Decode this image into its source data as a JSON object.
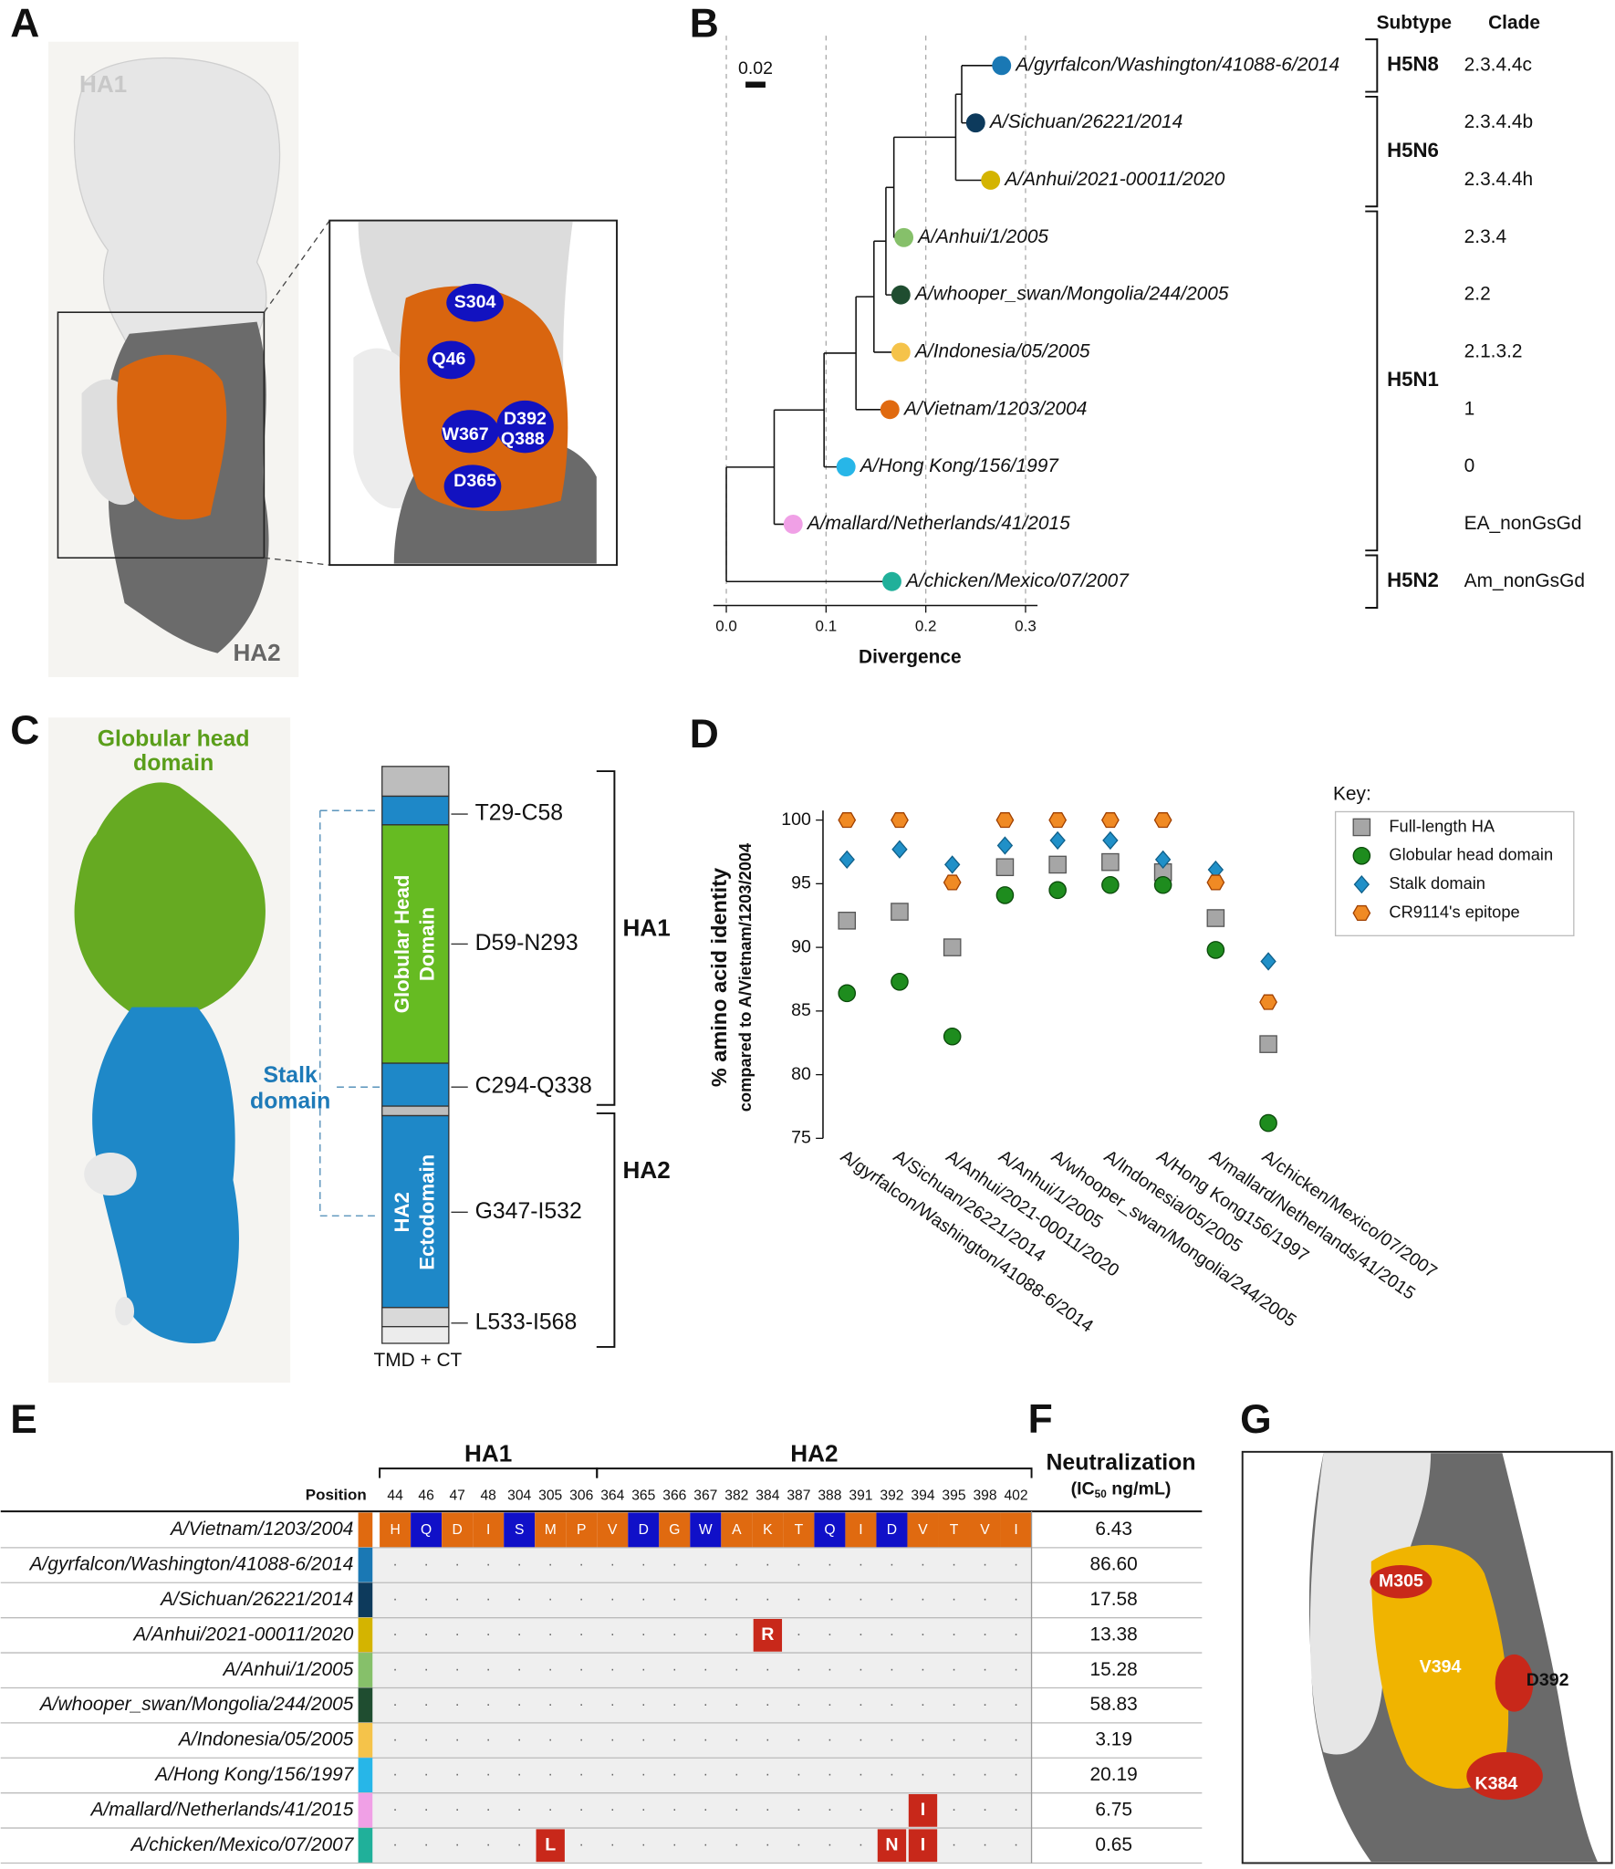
{
  "panel_labels": [
    "A",
    "B",
    "C",
    "D",
    "E",
    "F",
    "G"
  ],
  "panel_a": {
    "ha1": "HA1",
    "ha2": "HA2",
    "residues": [
      "S304",
      "Q46",
      "W367",
      "D392",
      "Q388",
      "D365"
    ]
  },
  "panel_b": {
    "headers": [
      "Subtype",
      "Clade"
    ],
    "scale_bar": 0.02,
    "x_label": "Divergence",
    "xlim": [
      -0.013,
      0.312
    ],
    "xticks": [
      {
        "value": 0,
        "label": "0.0"
      },
      0.1,
      0.2,
      0.3
    ],
    "grid": true,
    "tree": {
      "divergence": 0,
      "children": [
        {
          "divergence": 0.048,
          "children": [
            {
              "divergence": 0.098,
              "children": [
                {
                  "divergence": 0.13,
                  "children": [
                    {
                      "divergence": 0.148,
                      "children": [
                        {
                          "divergence": 0.16,
                          "children": [
                            {
                              "divergence": 0.168,
                              "children": [
                                {
                                  "divergence": 0.23,
                                  "children": [
                                    {
                                      "divergence": 0.236,
                                      "children": [
                                        {
                                          "name": "A/gyrfalcon/Washington/41088-6/2014",
                                          "color": "#1a78b4",
                                          "divergence": 0.276,
                                          "subtype": "H5N8",
                                          "clade": "2.3.4.4c"
                                        },
                                        {
                                          "name": "A/Sichuan/26221/2014",
                                          "color": "#0d3a5c",
                                          "divergence": 0.25,
                                          "subtype": "H5N6",
                                          "clade": "2.3.4.4b"
                                        }
                                      ]
                                    },
                                    {
                                      "name": "A/Anhui/2021-00011/2020",
                                      "color": "#d4b400",
                                      "divergence": 0.265,
                                      "subtype": "H5N6",
                                      "clade": "2.3.4.4h"
                                    }
                                  ]
                                },
                                {
                                  "name": "A/Anhui/1/2005",
                                  "color": "#86c06a",
                                  "divergence": 0.178,
                                  "subtype": "H5N1",
                                  "clade": "2.3.4"
                                }
                              ]
                            },
                            {
                              "name": "A/whooper_swan/Mongolia/244/2005",
                              "color": "#1f4d30",
                              "divergence": 0.175,
                              "subtype": "H5N1",
                              "clade": "2.2"
                            }
                          ]
                        },
                        {
                          "name": "A/Indonesia/05/2005",
                          "color": "#f5c34a",
                          "divergence": 0.175,
                          "subtype": "H5N1",
                          "clade": "2.1.3.2"
                        }
                      ]
                    },
                    {
                      "name": "A/Vietnam/1203/2004",
                      "color": "#e06a10",
                      "divergence": 0.164,
                      "subtype": "H5N1",
                      "clade": "1"
                    }
                  ]
                },
                {
                  "name": "A/Hong Kong/156/1997",
                  "color": "#27b6e8",
                  "divergence": 0.12,
                  "subtype": "H5N1",
                  "clade": "0"
                }
              ]
            },
            {
              "name": "A/mallard/Netherlands/41/2015",
              "color": "#f0a0e6",
              "divergence": 0.067,
              "subtype": "H5N1",
              "clade": "EA_nonGsGd"
            }
          ]
        },
        {
          "name": "A/chicken/Mexico/07/2007",
          "color": "#20b09a",
          "divergence": 0.166,
          "subtype": "H5N2",
          "clade": "Am_nonGsGd"
        }
      ]
    }
  },
  "panel_c": {
    "head_label": [
      "Globular head",
      "domain"
    ],
    "stalk_label": [
      "Stalk",
      "domain"
    ],
    "segments": [
      "T29-C58",
      "D59-N293",
      "C294-Q338",
      "G347-I532",
      "L533-I568"
    ],
    "inner": [
      [
        "Globular Head",
        "Domain"
      ],
      [
        "HA2",
        "Ectodomain"
      ]
    ],
    "brackets": [
      "HA1",
      "HA2"
    ],
    "tm": "TMD + CT"
  },
  "chart_data": {
    "type": "scatter",
    "y_label": [
      "% amino acid identity",
      "compared to A/Vietnam/1203/2004"
    ],
    "categories": [
      "A/gyrfalcon/Washington/41088-6/2014",
      "A/Sichuan/26221/2014",
      "A/Anhui/2021-00011/2020",
      "A/Anhui/1/2005",
      "A/whooper_swan/Mongolia/244/2005",
      "A/Indonesia/05/2005",
      "A/Hong Kong156/1997",
      "A/mallard/Netherlands/41/2015",
      "A/chicken/Mexico/07/2007"
    ],
    "series": [
      {
        "name": "Full-length HA",
        "color": "#a6a6a6",
        "marker": "square",
        "values": [
          92.1,
          92.8,
          90.0,
          96.3,
          96.5,
          96.7,
          95.9,
          92.3,
          82.4
        ]
      },
      {
        "name": "Globular head domain",
        "color": "#1e8c1e",
        "marker": "circle",
        "values": [
          86.4,
          87.3,
          83.0,
          94.1,
          94.5,
          94.9,
          94.9,
          89.8,
          76.2
        ]
      },
      {
        "name": "Stalk domain",
        "color": "#2090c8",
        "marker": "diamond",
        "values": [
          96.9,
          97.7,
          96.5,
          98.0,
          98.4,
          98.4,
          96.9,
          96.1,
          88.9
        ]
      },
      {
        "name": "CR9114's epitope",
        "color": "#f08a24",
        "marker": "hexagon",
        "values": [
          100,
          100,
          95.1,
          100,
          100,
          100,
          100,
          95.1,
          85.7
        ]
      }
    ],
    "ylim": [
      75,
      100
    ],
    "yticks": [
      75,
      80,
      85,
      90,
      95,
      100
    ],
    "legend_title": "Key:",
    "legend": "upper right"
  },
  "panel_e": {
    "position_label": "Position",
    "groups": [
      {
        "name": "HA1",
        "positions": [
          44,
          46,
          47,
          48,
          304,
          305,
          306
        ]
      },
      {
        "name": "HA2",
        "positions": [
          364,
          365,
          366,
          367,
          382,
          384,
          387,
          388,
          391,
          392,
          394,
          395,
          398,
          402
        ]
      }
    ],
    "reference": {
      "name": "A/Vietnam/1203/2004",
      "color": "#e06a10",
      "residues": [
        "H",
        "Q",
        "D",
        "I",
        "S",
        "M",
        "P",
        "V",
        "D",
        "G",
        "W",
        "A",
        "K",
        "T",
        "Q",
        "I",
        "D",
        "V",
        "T",
        "V",
        "I"
      ],
      "residue_colors": [
        "#e06a10",
        "#1010c8",
        "#e06a10",
        "#e06a10",
        "#1010c8",
        "#e06a10",
        "#e06a10",
        "#e06a10",
        "#1010c8",
        "#e06a10",
        "#1010c8",
        "#e06a10",
        "#e06a10",
        "#e06a10",
        "#1010c8",
        "#e06a10",
        "#1010c8",
        "#e06a10",
        "#e06a10",
        "#e06a10",
        "#e06a10"
      ]
    },
    "mutation_color": "#c8281a",
    "rows": [
      {
        "name": "A/gyrfalcon/Washington/41088-6/2014",
        "color": "#1a78b4",
        "residues": [
          ".",
          ".",
          ".",
          ".",
          ".",
          ".",
          ".",
          ".",
          ".",
          ".",
          ".",
          ".",
          ".",
          ".",
          ".",
          ".",
          ".",
          ".",
          ".",
          ".",
          "."
        ]
      },
      {
        "name": "A/Sichuan/26221/2014",
        "color": "#0d3a5c",
        "residues": [
          ".",
          ".",
          ".",
          ".",
          ".",
          ".",
          ".",
          ".",
          ".",
          ".",
          ".",
          ".",
          ".",
          ".",
          ".",
          ".",
          ".",
          ".",
          ".",
          ".",
          "."
        ]
      },
      {
        "name": "A/Anhui/2021-00011/2020",
        "color": "#d4b400",
        "residues": [
          ".",
          ".",
          ".",
          ".",
          ".",
          ".",
          ".",
          ".",
          ".",
          ".",
          ".",
          ".",
          "R",
          ".",
          ".",
          ".",
          ".",
          ".",
          ".",
          ".",
          "."
        ]
      },
      {
        "name": "A/Anhui/1/2005",
        "color": "#86c06a",
        "residues": [
          ".",
          ".",
          ".",
          ".",
          ".",
          ".",
          ".",
          ".",
          ".",
          ".",
          ".",
          ".",
          ".",
          ".",
          ".",
          ".",
          ".",
          ".",
          ".",
          ".",
          "."
        ]
      },
      {
        "name": "A/whooper_swan/Mongolia/244/2005",
        "color": "#1f4d30",
        "residues": [
          ".",
          ".",
          ".",
          ".",
          ".",
          ".",
          ".",
          ".",
          ".",
          ".",
          ".",
          ".",
          ".",
          ".",
          ".",
          ".",
          ".",
          ".",
          ".",
          ".",
          "."
        ]
      },
      {
        "name": "A/Indonesia/05/2005",
        "color": "#f5c34a",
        "residues": [
          ".",
          ".",
          ".",
          ".",
          ".",
          ".",
          ".",
          ".",
          ".",
          ".",
          ".",
          ".",
          ".",
          ".",
          ".",
          ".",
          ".",
          ".",
          ".",
          ".",
          "."
        ]
      },
      {
        "name": "A/Hong Kong/156/1997",
        "color": "#27b6e8",
        "residues": [
          ".",
          ".",
          ".",
          ".",
          ".",
          ".",
          ".",
          ".",
          ".",
          ".",
          ".",
          ".",
          ".",
          ".",
          ".",
          ".",
          ".",
          ".",
          ".",
          ".",
          "."
        ]
      },
      {
        "name": "A/mallard/Netherlands/41/2015",
        "color": "#f0a0e6",
        "residues": [
          ".",
          ".",
          ".",
          ".",
          ".",
          ".",
          ".",
          ".",
          ".",
          ".",
          ".",
          ".",
          ".",
          ".",
          ".",
          ".",
          ".",
          "I",
          ".",
          ".",
          "."
        ]
      },
      {
        "name": "A/chicken/Mexico/07/2007",
        "color": "#20b09a",
        "residues": [
          ".",
          ".",
          ".",
          ".",
          ".",
          "L",
          ".",
          ".",
          ".",
          ".",
          ".",
          ".",
          ".",
          ".",
          ".",
          ".",
          "N",
          "I",
          ".",
          ".",
          "."
        ]
      }
    ]
  },
  "panel_f": {
    "title": "Neutralization",
    "unit": [
      "(IC",
      "50",
      " ng/mL)"
    ],
    "values": [
      "6.43",
      "86.60",
      "17.58",
      "13.38",
      "15.28",
      "58.83",
      "3.19",
      "20.19",
      "6.75",
      "0.65"
    ]
  },
  "panel_g": {
    "residues": [
      "M305",
      "V394",
      "D392",
      "K384"
    ]
  }
}
